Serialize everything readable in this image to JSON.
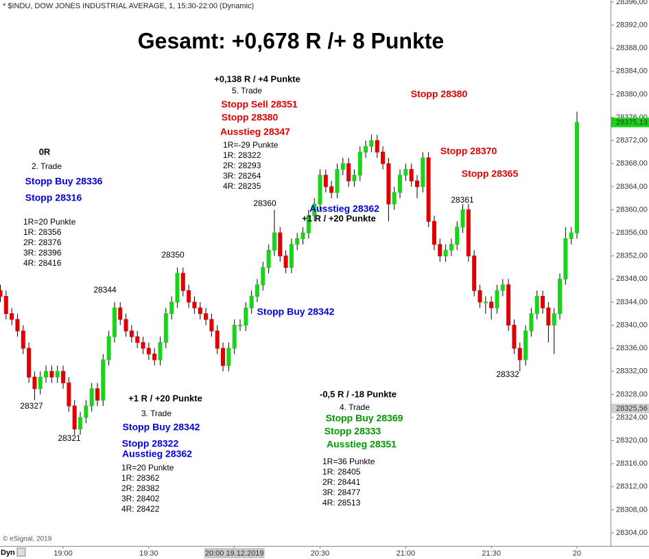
{
  "header": "* $INDU, DOW JONES INDUSTRIAL AVERAGE, 1, 15:30-22:00 (Dynamic)",
  "footer": {
    "copyright": "© eSignal, 2019",
    "mode": "Dyn"
  },
  "chart_data": {
    "type": "candlestick",
    "title": "Gesamt: +0,678 R /+ 8 Punkte",
    "up_color": "#19d419",
    "down_color": "#e00000",
    "grid": false,
    "x": [
      "18:38",
      "18:40",
      "18:42",
      "18:44",
      "18:46",
      "18:48",
      "18:50",
      "18:52",
      "18:54",
      "18:56",
      "18:58",
      "19:00",
      "19:02",
      "19:04",
      "19:06",
      "19:08",
      "19:10",
      "19:12",
      "19:14",
      "19:16",
      "19:18",
      "19:20",
      "19:22",
      "19:24",
      "19:26",
      "19:28",
      "19:30",
      "19:32",
      "19:34",
      "19:36",
      "19:38",
      "19:40",
      "19:42",
      "19:44",
      "19:46",
      "19:48",
      "19:50",
      "19:52",
      "19:54",
      "19:56",
      "19:58",
      "20:00",
      "20:02",
      "20:04",
      "20:06",
      "20:08",
      "20:10",
      "20:12",
      "20:14",
      "20:16",
      "20:18",
      "20:20",
      "20:22",
      "20:24",
      "20:26",
      "20:28",
      "20:30",
      "20:32",
      "20:34",
      "20:36",
      "20:38",
      "20:40",
      "20:42",
      "20:44",
      "20:46",
      "20:48",
      "20:50",
      "20:52",
      "20:54",
      "20:56",
      "20:58",
      "21:00",
      "21:02",
      "21:04",
      "21:06",
      "21:08",
      "21:10",
      "21:12",
      "21:14",
      "21:16",
      "21:18",
      "21:20",
      "21:22",
      "21:24",
      "21:26",
      "21:28",
      "21:30",
      "21:32",
      "21:34",
      "21:36",
      "21:38",
      "21:40",
      "21:42",
      "21:44",
      "21:46",
      "21:48",
      "21:50",
      "21:52",
      "21:54",
      "21:56",
      "21:58",
      "22:00"
    ],
    "open": [
      28346,
      28345,
      28342,
      28341,
      28339,
      28336,
      28331,
      28329,
      28331,
      28332,
      28331,
      28332,
      28330,
      28326,
      28322,
      28324,
      28326,
      28329,
      28327,
      28334,
      28338,
      28343,
      28341,
      28339,
      28338,
      28337,
      28336,
      28335,
      28334,
      28337,
      28342,
      28344,
      28349,
      28346,
      28344,
      28343,
      28342,
      28341,
      28339,
      28336,
      28333,
      28336,
      28340,
      28340,
      28343,
      28345,
      28347,
      28350,
      28353,
      28356,
      28352,
      28350,
      28354,
      28355,
      28356,
      28359,
      28361,
      28366,
      28364,
      28363,
      28367,
      28368,
      28365,
      28366,
      28370,
      28371,
      28372,
      28370,
      28368,
      28361,
      28363,
      28366,
      28367,
      28365,
      28364,
      28369,
      28358,
      28354,
      28352,
      28353,
      28354,
      28357,
      28360,
      28352,
      28346,
      28344,
      28344,
      28343,
      28346,
      28347,
      28340,
      28336,
      28334,
      28339,
      28342,
      28345,
      28343,
      28340,
      28342,
      28348,
      28355,
      28356
    ],
    "high": [
      28347,
      28346,
      28343,
      28342,
      28340,
      28337,
      28332,
      28332,
      28333,
      28333,
      28333,
      28333,
      28331,
      28327,
      28325,
      28327,
      28330,
      28330,
      28335,
      28339,
      28344,
      28344,
      28342,
      28340,
      28339,
      28338,
      28337,
      28336,
      28338,
      28343,
      28345,
      28350,
      28350,
      28347,
      28345,
      28344,
      28343,
      28342,
      28340,
      28337,
      28337,
      28341,
      28341,
      28344,
      28346,
      28348,
      28351,
      28354,
      28360,
      28357,
      28353,
      28355,
      28356,
      28357,
      28360,
      28362,
      28367,
      28367,
      28365,
      28368,
      28369,
      28369,
      28367,
      28371,
      28372,
      28373,
      28373,
      28371,
      28369,
      28364,
      28367,
      28368,
      28368,
      28366,
      28370,
      28370,
      28359,
      28355,
      28354,
      28355,
      28358,
      28361,
      28361,
      28353,
      28347,
      28345,
      28345,
      28347,
      28348,
      28348,
      28341,
      28337,
      28340,
      28343,
      28346,
      28346,
      28344,
      28343,
      28349,
      28357,
      28357,
      28377
    ],
    "low": [
      28344,
      28341,
      28340,
      28338,
      28335,
      28330,
      28327,
      28328,
      28330,
      28330,
      28330,
      28329,
      28325,
      28321,
      28321,
      28323,
      28325,
      28326,
      28326,
      28333,
      28337,
      28340,
      28338,
      28337,
      28336,
      28335,
      28334,
      28333,
      28333,
      28336,
      28341,
      28343,
      28345,
      28343,
      28342,
      28341,
      28340,
      28338,
      28335,
      28332,
      28332,
      28335,
      28339,
      28339,
      28342,
      28344,
      28346,
      28349,
      28352,
      28351,
      28349,
      28349,
      28353,
      28354,
      28355,
      28358,
      28360,
      28363,
      28362,
      28362,
      28366,
      28364,
      28364,
      28365,
      28369,
      28370,
      28369,
      28367,
      28358,
      28360,
      28362,
      28365,
      28364,
      28362,
      28363,
      28357,
      28353,
      28351,
      28351,
      28352,
      28353,
      28356,
      28351,
      28345,
      28343,
      28342,
      28341,
      28342,
      28345,
      28339,
      28335,
      28332,
      28333,
      28338,
      28341,
      28342,
      28337,
      28335,
      28341,
      28347,
      28354,
      28355
    ],
    "close": [
      28345,
      28342,
      28341,
      28339,
      28336,
      28331,
      28329,
      28331,
      28332,
      28331,
      28332,
      28330,
      28326,
      28322,
      28324,
      28326,
      28329,
      28327,
      28334,
      28338,
      28343,
      28341,
      28339,
      28338,
      28337,
      28336,
      28335,
      28334,
      28337,
      28342,
      28344,
      28349,
      28346,
      28344,
      28343,
      28342,
      28341,
      28339,
      28336,
      28333,
      28336,
      28340,
      28340,
      28343,
      28345,
      28347,
      28350,
      28353,
      28356,
      28352,
      28350,
      28354,
      28355,
      28356,
      28359,
      28361,
      28366,
      28364,
      28363,
      28367,
      28368,
      28365,
      28366,
      28370,
      28371,
      28372,
      28370,
      28368,
      28361,
      28363,
      28366,
      28367,
      28365,
      28364,
      28369,
      28358,
      28354,
      28352,
      28353,
      28354,
      28357,
      28360,
      28352,
      28346,
      28344,
      28344,
      28343,
      28346,
      28347,
      28340,
      28336,
      28334,
      28339,
      28342,
      28345,
      28343,
      28340,
      28342,
      28348,
      28355,
      28356,
      28375.13
    ],
    "ylim": [
      28304,
      28396
    ],
    "yticks": [
      {
        "value": 28304,
        "label": "28304,00"
      },
      {
        "value": 28308,
        "label": "28308,00"
      },
      {
        "value": 28312,
        "label": "28312,00"
      },
      {
        "value": 28316,
        "label": "28316,00"
      },
      {
        "value": 28320,
        "label": "28320,00"
      },
      {
        "value": 28324,
        "label": "28324,00"
      },
      {
        "value": 28328,
        "label": "28328,00"
      },
      {
        "value": 28332,
        "label": "28332,00"
      },
      {
        "value": 28336,
        "label": "28336,00"
      },
      {
        "value": 28340,
        "label": "28340,00"
      },
      {
        "value": 28344,
        "label": "28344,00"
      },
      {
        "value": 28348,
        "label": "28348,00"
      },
      {
        "value": 28352,
        "label": "28352,00"
      },
      {
        "value": 28356,
        "label": "28356,00"
      },
      {
        "value": 28360,
        "label": "28360,00"
      },
      {
        "value": 28364,
        "label": "28364,00"
      },
      {
        "value": 28368,
        "label": "28368,00"
      },
      {
        "value": 28372,
        "label": "28372,00"
      },
      {
        "value": 28376,
        "label": "28376,00"
      },
      {
        "value": 28380,
        "label": "28380,00"
      },
      {
        "value": 28384,
        "label": "28384,00"
      },
      {
        "value": 28388,
        "label": "28388,00"
      },
      {
        "value": 28392,
        "label": "28392,00"
      },
      {
        "value": 28396,
        "label": "28396,00"
      }
    ],
    "xticks": [
      "19:00",
      "19:30",
      {
        "value": "20:00",
        "label": "20:00 19.12.2019"
      },
      "20:30",
      "21:00",
      "21:30",
      {
        "value": "22:00",
        "label": "20"
      }
    ],
    "last_price": {
      "value": 28375.13,
      "label": "28375,13"
    },
    "reference_price": {
      "value": 28325.56,
      "label": "28325,56"
    },
    "annotations": [
      "+0,138 R / +4 Punkte",
      "5. Trade",
      "Stopp Sell 28351",
      "Stopp 28380",
      "Ausstieg 28347",
      "1R=-29 Punkte",
      "1R: 28322",
      "2R: 28293",
      "3R: 28264",
      "4R: 28235",
      "28360",
      "Stopp 28380",
      "Stopp 28370",
      "Stopp 28365",
      "28361",
      "Ausstieg 28362",
      "+1 R / +20 Punkte",
      "Stopp Buy 28342",
      "0R",
      "2. Trade",
      "Stopp Buy 28336",
      "Stopp 28316",
      "1R=20 Punkte",
      "1R: 28356",
      "2R: 28376",
      "3R: 28396",
      "4R: 28416",
      "28350",
      "28344",
      "28327",
      "28321",
      "+1 R / +20 Punkte",
      "3. Trade",
      "Stopp Buy 28342",
      "Stopp 28322",
      "Ausstieg 28362",
      "1R=20 Punkte",
      "1R: 28362",
      "2R: 28382",
      "3R: 28402",
      "4R: 28422",
      "-0,5 R / -18 Punkte",
      "4. Trade",
      "Stopp Buy 28369",
      "Stopp 28333",
      "Ausstieg 28351",
      "1R=36 Punkte",
      "1R: 28405",
      "2R: 28441",
      "3R: 28477",
      "4R: 28513",
      "28332"
    ]
  }
}
